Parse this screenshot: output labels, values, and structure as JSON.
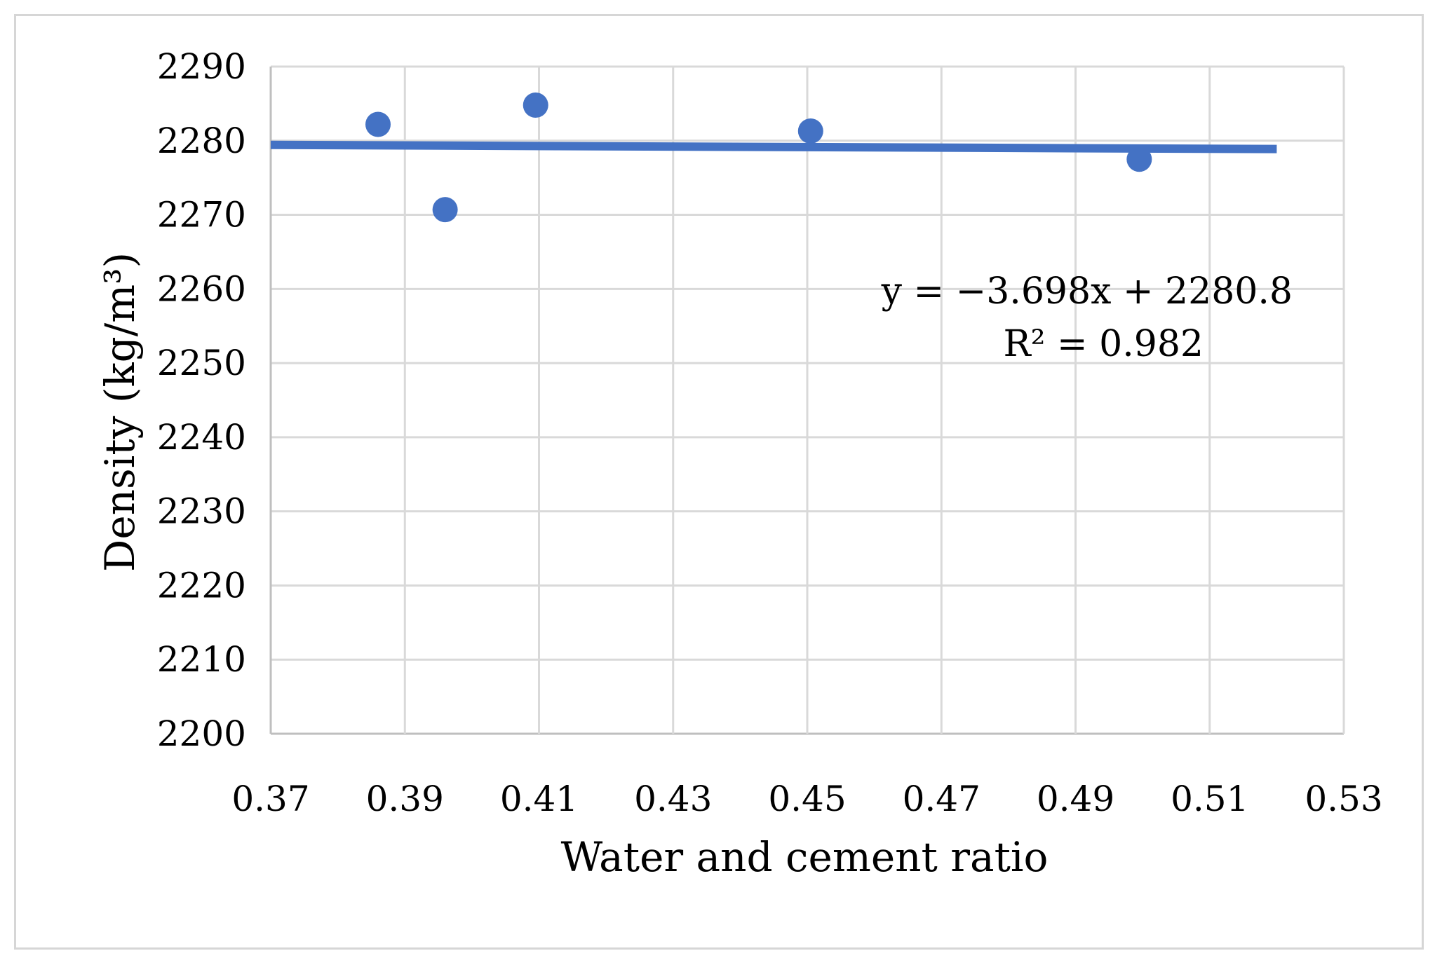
{
  "chart_data": {
    "type": "scatter",
    "title": "",
    "xlabel": "Water and cement ratio",
    "ylabel": "Density (kg/m³)",
    "xlim": [
      0.37,
      0.53
    ],
    "ylim": [
      2200,
      2290
    ],
    "x_ticks": [
      "0.37",
      "0.39",
      "0.41",
      "0.43",
      "0.45",
      "0.47",
      "0.49",
      "0.51",
      "0.53"
    ],
    "y_ticks": [
      "2200",
      "2210",
      "2220",
      "2230",
      "2240",
      "2250",
      "2260",
      "2270",
      "2280",
      "2290"
    ],
    "grid": true,
    "series": [
      {
        "name": "Density",
        "x": [
          0.386,
          0.396,
          0.4095,
          0.4505,
          0.4995
        ],
        "y": [
          2282.2,
          2270.7,
          2284.8,
          2281.3,
          2277.5
        ]
      }
    ],
    "trendline": {
      "x_range": [
        0.37,
        0.52
      ],
      "slope": -3.698,
      "intercept": 2280.8
    },
    "annotations": {
      "equation": "y = −3.698x + 2280.8",
      "r_squared": "R² = 0.982"
    },
    "colors": {
      "marker": "#4472C4",
      "trendline": "#4472C4",
      "grid": "#d9d9d9",
      "axis": "#bfbfbf"
    }
  }
}
